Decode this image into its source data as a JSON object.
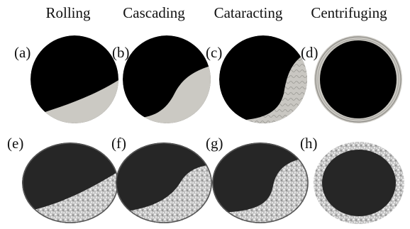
{
  "header": {
    "columns": [
      "Rolling",
      "Cascading",
      "Cataracting",
      "Centrifuging"
    ]
  },
  "panels": {
    "labels": [
      "(a)",
      "(b)",
      "(c)",
      "(d)",
      "(e)",
      "(f)",
      "(g)",
      "(h)"
    ]
  }
}
